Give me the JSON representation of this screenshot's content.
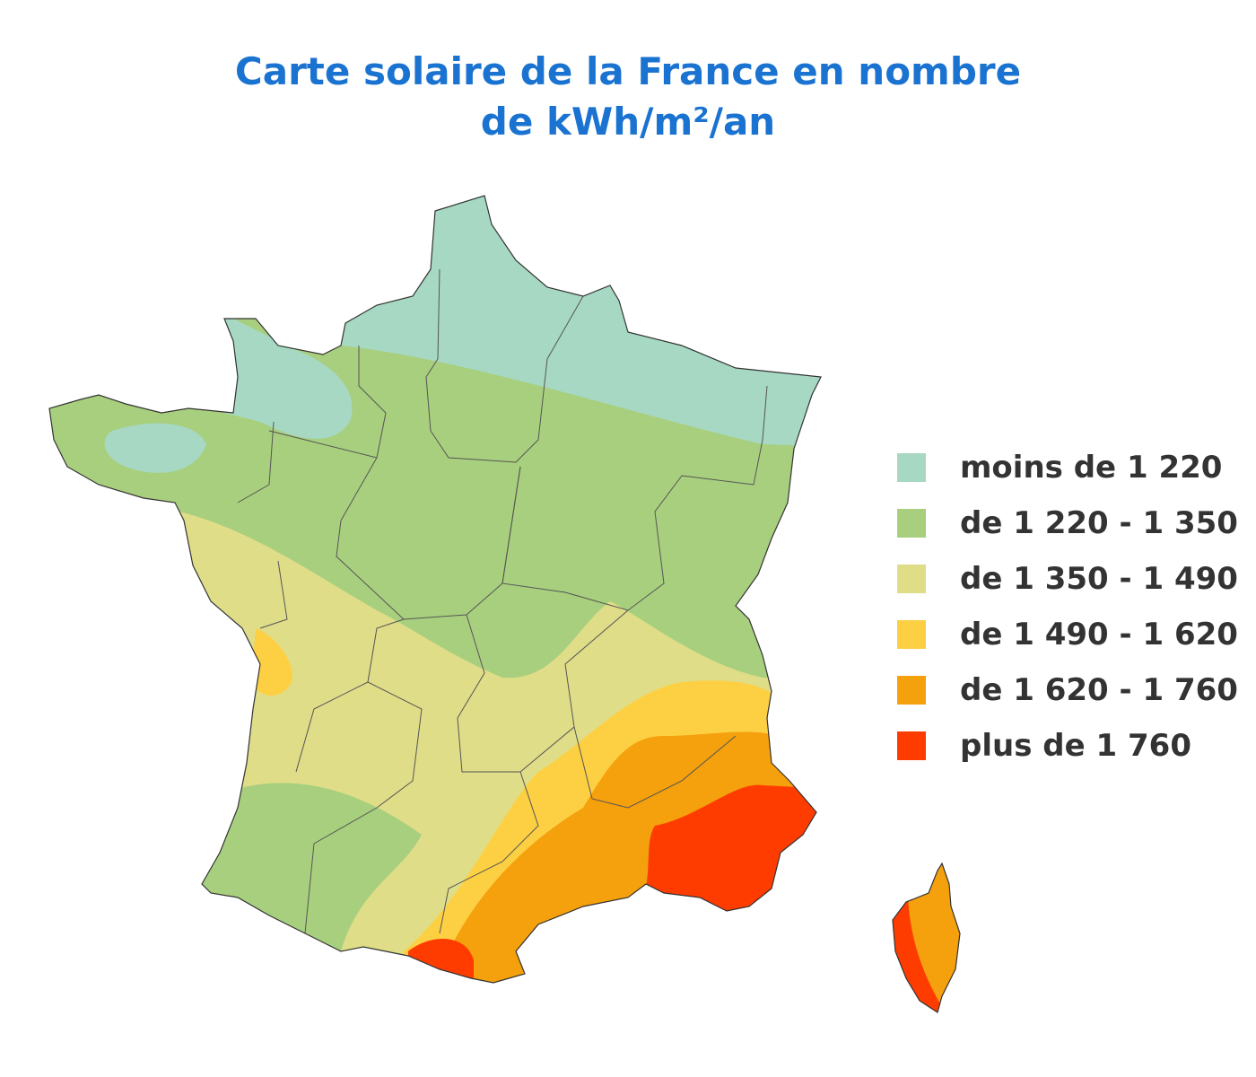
{
  "title": "Carte solaire de la France en nombre de kWh/m²/an",
  "legend": [
    {
      "label": "moins de 1 220",
      "color": "#a6d8c3"
    },
    {
      "label": "de 1 220 - 1 350",
      "color": "#a8cf7e"
    },
    {
      "label": "de 1 350 - 1 490",
      "color": "#dfdd88"
    },
    {
      "label": "de 1 490 - 1 620",
      "color": "#fdd043"
    },
    {
      "label": "de 1 620 - 1 760",
      "color": "#f5a00d"
    },
    {
      "label": "plus de 1 760",
      "color": "#ff3c00"
    }
  ]
}
